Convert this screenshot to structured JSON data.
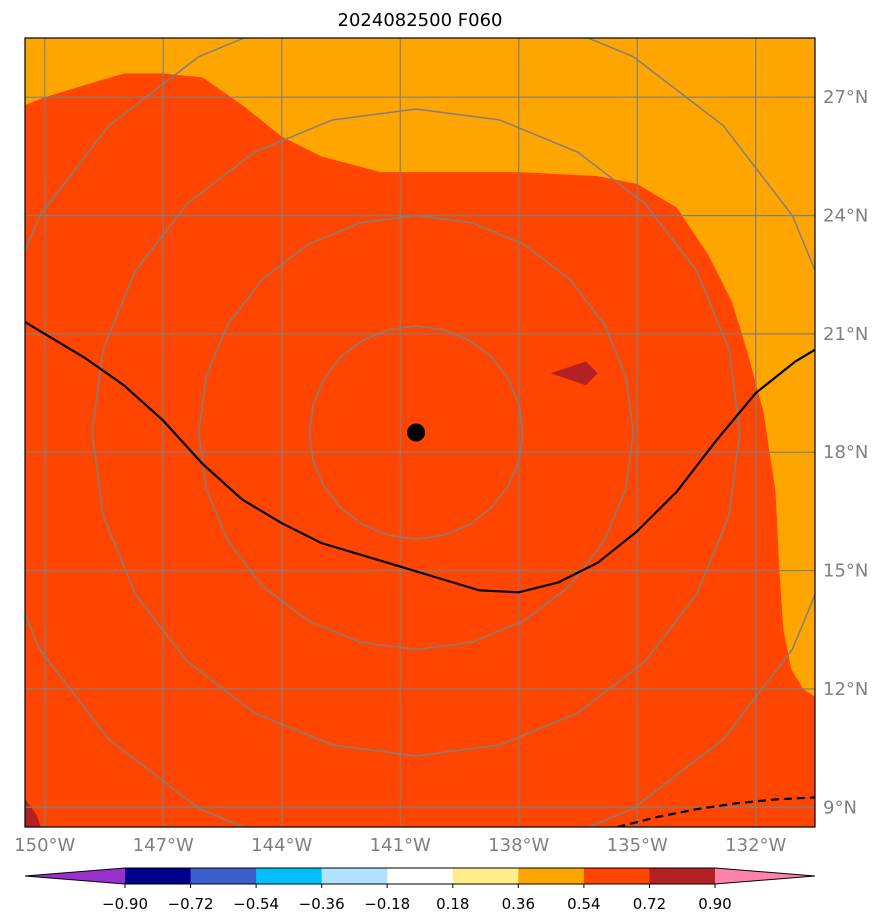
{
  "title": "2024082500 F060",
  "map": {
    "lon_min": -150.5,
    "lon_max": -130.5,
    "lat_min": 8.5,
    "lat_max": 28.5,
    "lon_ticks": [
      {
        "value": -150,
        "label": "150°W"
      },
      {
        "value": -147,
        "label": "147°W"
      },
      {
        "value": -144,
        "label": "144°W"
      },
      {
        "value": -141,
        "label": "141°W"
      },
      {
        "value": -138,
        "label": "138°W"
      },
      {
        "value": -135,
        "label": "135°W"
      },
      {
        "value": -132,
        "label": "132°W"
      }
    ],
    "lat_ticks": [
      {
        "value": 9,
        "label": "9°N"
      },
      {
        "value": 12,
        "label": "12°N"
      },
      {
        "value": 15,
        "label": "15°N"
      },
      {
        "value": 18,
        "label": "18°N"
      },
      {
        "value": 21,
        "label": "21°N"
      },
      {
        "value": 24,
        "label": "24°N"
      },
      {
        "value": 27,
        "label": "27°N"
      }
    ],
    "background_color": "#FF4500",
    "storm_center": {
      "lon": -140.6,
      "lat": 18.5
    },
    "range_ring_radii_deg": [
      2.7,
      5.5,
      8.2,
      11.0
    ],
    "regions": [
      {
        "name": "orange-region-north",
        "color": "#FFA500",
        "lonlat": [
          [
            -150.5,
            28.5
          ],
          [
            -130.5,
            28.5
          ],
          [
            -130.5,
            11.8
          ],
          [
            -130.8,
            12.0
          ],
          [
            -131.1,
            12.5
          ],
          [
            -131.3,
            13.5
          ],
          [
            -131.4,
            15.0
          ],
          [
            -131.5,
            17.0
          ],
          [
            -131.8,
            19.0
          ],
          [
            -132.2,
            20.5
          ],
          [
            -132.6,
            21.8
          ],
          [
            -133.2,
            23.0
          ],
          [
            -134.0,
            24.2
          ],
          [
            -135.0,
            24.8
          ],
          [
            -136.0,
            25.0
          ],
          [
            -138.0,
            25.1
          ],
          [
            -140.0,
            25.1
          ],
          [
            -141.5,
            25.1
          ],
          [
            -143.0,
            25.5
          ],
          [
            -144.0,
            26.0
          ],
          [
            -145.0,
            26.8
          ],
          [
            -146.0,
            27.5
          ],
          [
            -147.0,
            27.6
          ],
          [
            -148.0,
            27.6
          ],
          [
            -149.0,
            27.3
          ],
          [
            -150.0,
            27.0
          ],
          [
            -150.5,
            26.8
          ]
        ]
      },
      {
        "name": "dark-red-patch-east",
        "color": "#B22222",
        "lonlat": [
          [
            -137.2,
            20.0
          ],
          [
            -136.3,
            20.3
          ],
          [
            -136.0,
            20.0
          ],
          [
            -136.3,
            19.7
          ],
          [
            -137.2,
            20.0
          ]
        ]
      },
      {
        "name": "purple-patch-southwest",
        "color": "#9932CC",
        "lonlat": [
          [
            -150.5,
            9.0
          ],
          [
            -150.2,
            8.5
          ],
          [
            -150.5,
            8.5
          ]
        ]
      },
      {
        "name": "dark-red-patch-southwest",
        "color": "#B22222",
        "lonlat": [
          [
            -150.5,
            9.2
          ],
          [
            -150.2,
            8.8
          ],
          [
            -150.1,
            8.5
          ],
          [
            -150.5,
            8.5
          ]
        ]
      }
    ],
    "solid_contour_lonlat": [
      [
        -150.5,
        21.3
      ],
      [
        -150.0,
        21.0
      ],
      [
        -149.0,
        20.4
      ],
      [
        -148.0,
        19.7
      ],
      [
        -147.0,
        18.8
      ],
      [
        -146.0,
        17.7
      ],
      [
        -145.0,
        16.8
      ],
      [
        -144.0,
        16.2
      ],
      [
        -143.0,
        15.7
      ],
      [
        -142.0,
        15.4
      ],
      [
        -141.0,
        15.1
      ],
      [
        -140.0,
        14.8
      ],
      [
        -139.0,
        14.5
      ],
      [
        -138.0,
        14.45
      ],
      [
        -137.0,
        14.7
      ],
      [
        -136.0,
        15.2
      ],
      [
        -135.0,
        16.0
      ],
      [
        -134.0,
        17.0
      ],
      [
        -133.0,
        18.3
      ],
      [
        -132.0,
        19.5
      ],
      [
        -131.0,
        20.3
      ],
      [
        -130.5,
        20.6
      ]
    ],
    "dashed_contour_lonlat": [
      [
        -135.5,
        8.5
      ],
      [
        -134.5,
        8.75
      ],
      [
        -133.5,
        8.95
      ],
      [
        -132.5,
        9.1
      ],
      [
        -131.5,
        9.2
      ],
      [
        -130.5,
        9.25
      ]
    ]
  },
  "colorbar": {
    "colors": [
      "#9932CC",
      "#00008B",
      "#3A5FCD",
      "#00BFFF",
      "#B0E2FF",
      "#FFFFFF",
      "#FFEC8B",
      "#FFA500",
      "#FF4500",
      "#B22222",
      "#FF82AB"
    ],
    "tick_labels": [
      "−0.90",
      "−0.72",
      "−0.54",
      "−0.36",
      "−0.18",
      "0.18",
      "0.36",
      "0.54",
      "0.72",
      "0.90"
    ]
  },
  "colors": {
    "grid": "#808080",
    "ring": "#808080",
    "contour": "#000000",
    "storm_marker": "#000000"
  }
}
